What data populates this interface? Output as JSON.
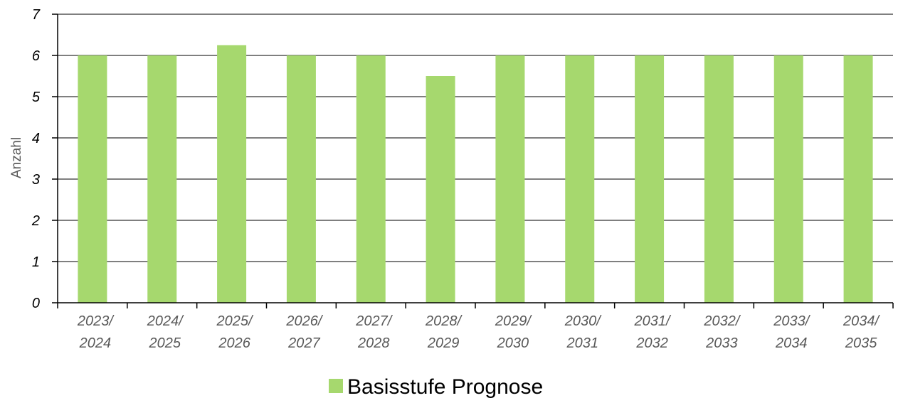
{
  "chart_data": {
    "type": "bar",
    "categories": [
      "2023/2024",
      "2024/2025",
      "2025/2026",
      "2026/2027",
      "2027/2028",
      "2028/2029",
      "2029/2030",
      "2030/2031",
      "2031/2032",
      "2032/2033",
      "2033/2034",
      "2034/2035"
    ],
    "category_lines": [
      [
        "2023/",
        "2024"
      ],
      [
        "2024/",
        "2025"
      ],
      [
        "2025/",
        "2026"
      ],
      [
        "2026/",
        "2027"
      ],
      [
        "2027/",
        "2028"
      ],
      [
        "2028/",
        "2029"
      ],
      [
        "2029/",
        "2030"
      ],
      [
        "2030/",
        "2031"
      ],
      [
        "2031/",
        "2032"
      ],
      [
        "2032/",
        "2033"
      ],
      [
        "2033/",
        "2034"
      ],
      [
        "2034/",
        "2035"
      ]
    ],
    "series": [
      {
        "name": "Basisstufe Prognose",
        "values": [
          6,
          6,
          6.25,
          6,
          6,
          5.5,
          6,
          6,
          6,
          6,
          6,
          6
        ]
      }
    ],
    "ylabel": "Anzahl",
    "xlabel": "",
    "ylim": [
      0,
      7
    ],
    "yticks": [
      0,
      1,
      2,
      3,
      4,
      5,
      6,
      7
    ],
    "grid": true,
    "legend": "bottom-center",
    "colors": {
      "bar": "#a6d86e",
      "grid": "#7f7f7f",
      "axis": "#000000"
    }
  }
}
